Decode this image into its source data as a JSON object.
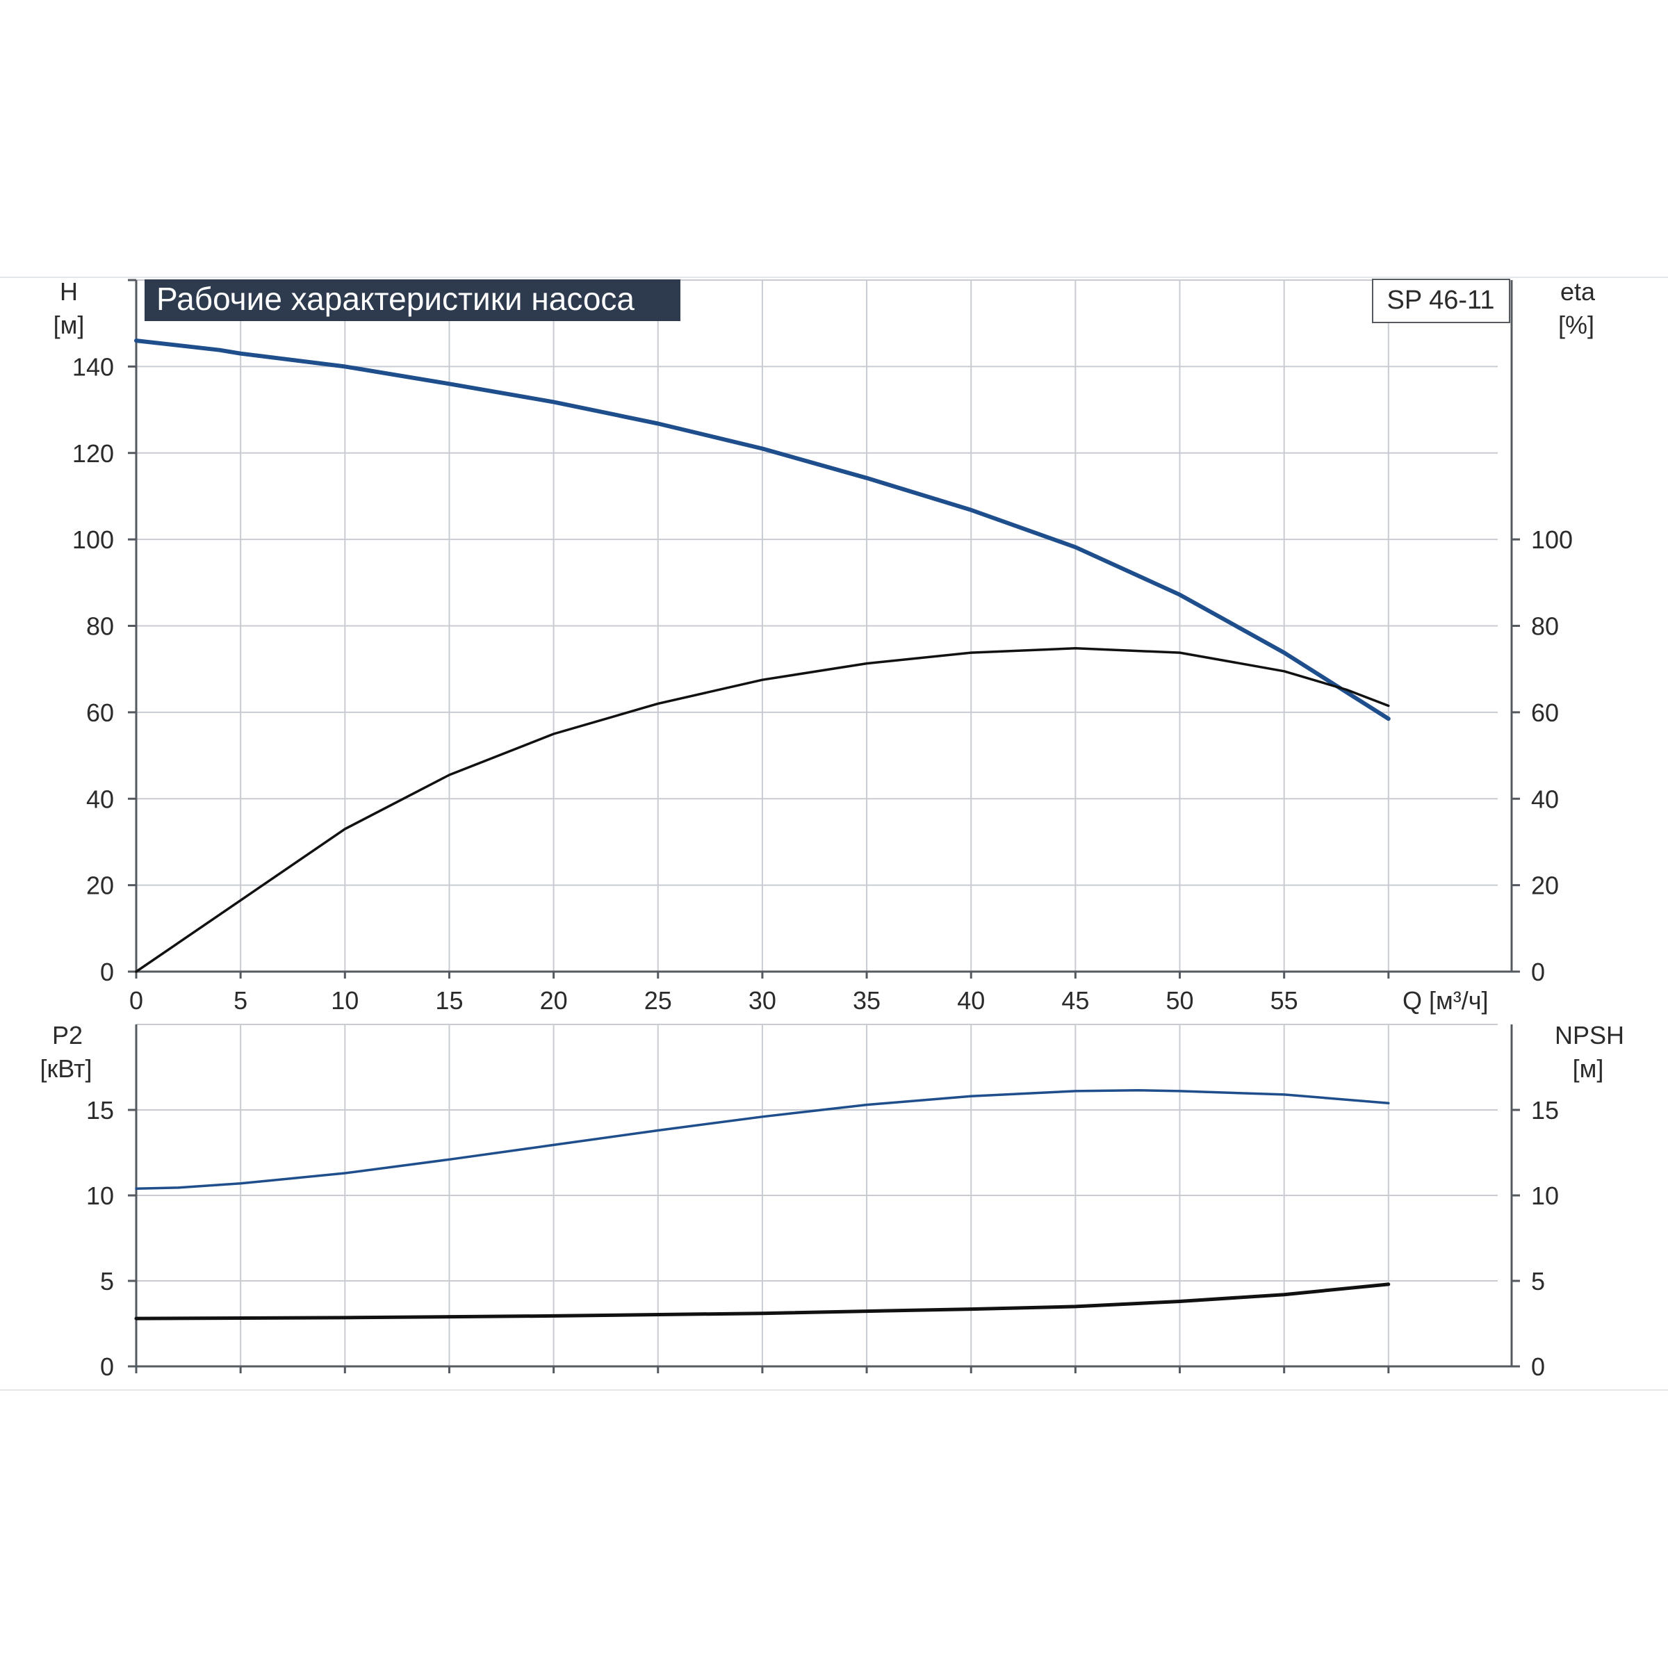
{
  "title": "Рабочие характеристики насоса",
  "model": "SP 46-11",
  "colors": {
    "title_bg": "#2e3b4e",
    "title_text": "#ffffff",
    "blue_curve": "#1f4e8c",
    "black_curve": "#111111",
    "grid": "#c8ccd2",
    "axis": "#555a60",
    "text": "#2b2b2b"
  },
  "x_axis": {
    "label": "Q [м³/ч]",
    "ticks": [
      0,
      5,
      10,
      15,
      20,
      25,
      30,
      35,
      40,
      45,
      50,
      55
    ],
    "range": [
      0,
      65.9
    ]
  },
  "chart_data": [
    {
      "type": "line",
      "panel": "top",
      "xlabel": "Q [м³/ч]",
      "left_axis": {
        "label_line1": "H",
        "label_line2": "[м]",
        "ticks": [
          0,
          20,
          40,
          60,
          80,
          100,
          120,
          140
        ],
        "range": [
          0,
          160
        ]
      },
      "right_axis": {
        "label_line1": "eta",
        "label_line2": "[%]",
        "ticks": [
          0,
          20,
          40,
          60,
          80,
          100
        ],
        "range": [
          0,
          160
        ]
      },
      "series": [
        {
          "axis": "left",
          "color": "#1f4e8c",
          "x": [
            0,
            4,
            5,
            10,
            15,
            20,
            25,
            30,
            35,
            40,
            45,
            50,
            55,
            60
          ],
          "y": [
            146,
            143.8,
            143,
            140,
            136,
            131.8,
            126.8,
            121,
            114.2,
            106.8,
            98.2,
            87.2,
            73.8,
            58.5
          ]
        },
        {
          "axis": "right",
          "color": "#111111",
          "x": [
            0,
            5,
            10,
            15,
            20,
            25,
            30,
            35,
            40,
            45,
            50,
            55,
            58,
            60
          ],
          "y": [
            0,
            16.5,
            33,
            45.5,
            55,
            62,
            67.5,
            71.3,
            73.8,
            74.8,
            73.8,
            69.5,
            65.2,
            61.5
          ]
        }
      ]
    },
    {
      "type": "line",
      "panel": "bottom",
      "xlabel": "Q [м³/ч]",
      "left_axis": {
        "label_line1": "P2",
        "label_line2": "[кВт]",
        "ticks": [
          0,
          5,
          10,
          15
        ],
        "range": [
          0,
          20
        ]
      },
      "right_axis": {
        "label_line1": "NPSH",
        "label_line2": "[м]",
        "ticks": [
          0,
          5,
          10,
          15
        ],
        "range": [
          0,
          20
        ]
      },
      "series": [
        {
          "axis": "left",
          "color": "#1f4e8c",
          "x": [
            0,
            2,
            5,
            10,
            15,
            20,
            25,
            30,
            35,
            40,
            45,
            48,
            50,
            55,
            60
          ],
          "y": [
            10.4,
            10.45,
            10.7,
            11.3,
            12.1,
            12.95,
            13.8,
            14.6,
            15.3,
            15.8,
            16.1,
            16.15,
            16.1,
            15.9,
            15.4
          ]
        },
        {
          "axis": "right",
          "color": "#111111",
          "x": [
            0,
            10,
            20,
            30,
            40,
            45,
            50,
            55,
            60
          ],
          "y": [
            2.8,
            2.85,
            2.95,
            3.1,
            3.35,
            3.5,
            3.8,
            4.2,
            4.8
          ]
        }
      ]
    }
  ]
}
